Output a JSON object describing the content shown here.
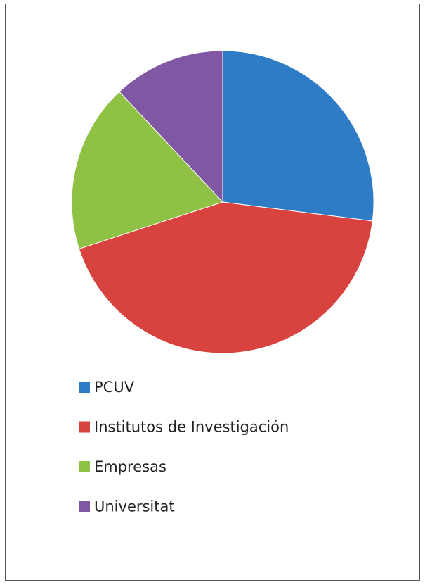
{
  "chart_data": {
    "type": "pie",
    "categories": [
      "PCUV",
      "Institutos de Investigación",
      "Empresas",
      "Universitat"
    ],
    "values": [
      27,
      43,
      18,
      12
    ],
    "colors": [
      "#2e7bc6",
      "#d8423f",
      "#8fc145",
      "#7f57a2"
    ],
    "legend": "bottom-left"
  }
}
